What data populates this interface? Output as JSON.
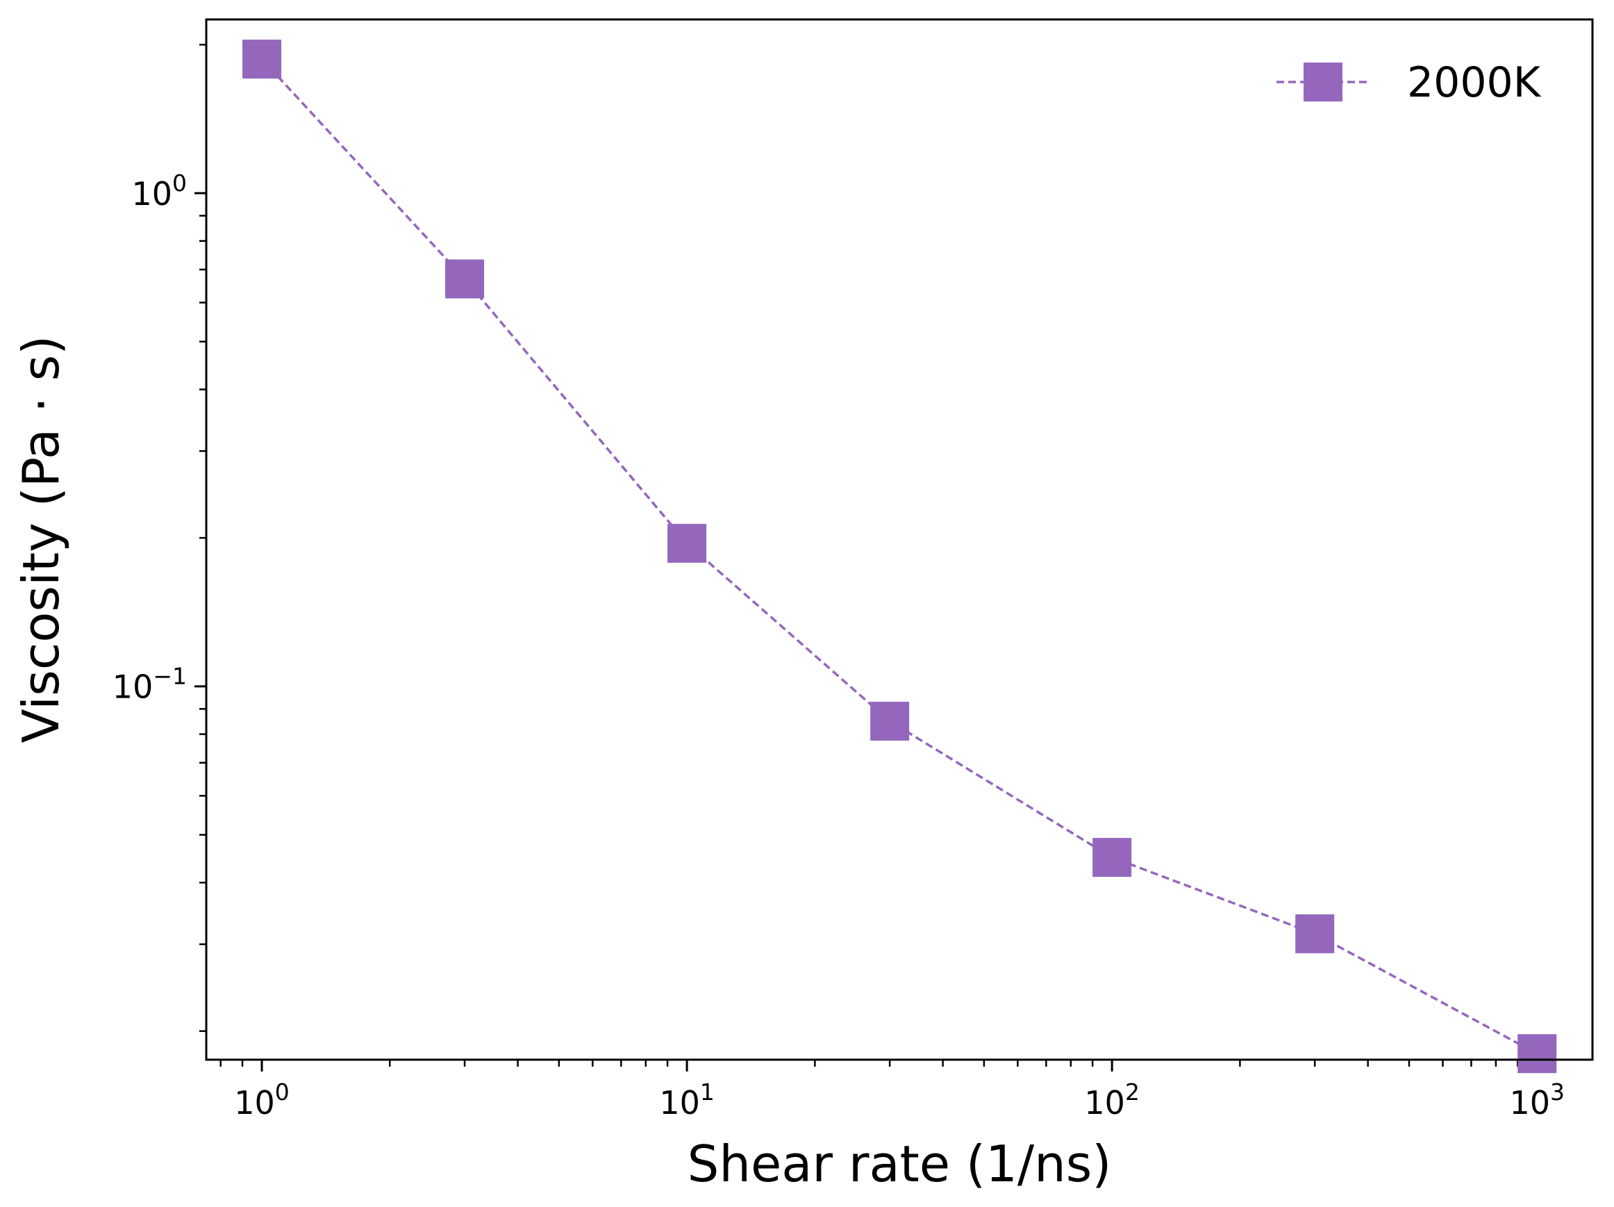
{
  "chart_data": {
    "type": "line",
    "title": "",
    "xlabel": "Shear rate (1/ns)",
    "ylabel": "Viscosity (Pa · s)",
    "xscale": "log",
    "yscale": "log",
    "xlim": [
      0.74,
      1350
    ],
    "ylim": [
      0.0175,
      2.25
    ],
    "x_ticks": [
      {
        "value": 1,
        "base": "10",
        "exp": "0"
      },
      {
        "value": 10,
        "base": "10",
        "exp": "1"
      },
      {
        "value": 100,
        "base": "10",
        "exp": "2"
      },
      {
        "value": 1000,
        "base": "10",
        "exp": "3"
      }
    ],
    "y_ticks": [
      {
        "value": 1,
        "base": "10",
        "exp": "0"
      },
      {
        "value": 0.1,
        "base": "10",
        "exp": "−1"
      }
    ],
    "grid": false,
    "legend_position": "top-right",
    "series": [
      {
        "name": "2000K",
        "color": "#9467bd",
        "marker": "square",
        "line_style": "dashed",
        "x": [
          1,
          3,
          10,
          30,
          100,
          300,
          1000
        ],
        "y": [
          1.87,
          0.67,
          0.195,
          0.085,
          0.045,
          0.0315,
          0.018
        ]
      }
    ]
  }
}
